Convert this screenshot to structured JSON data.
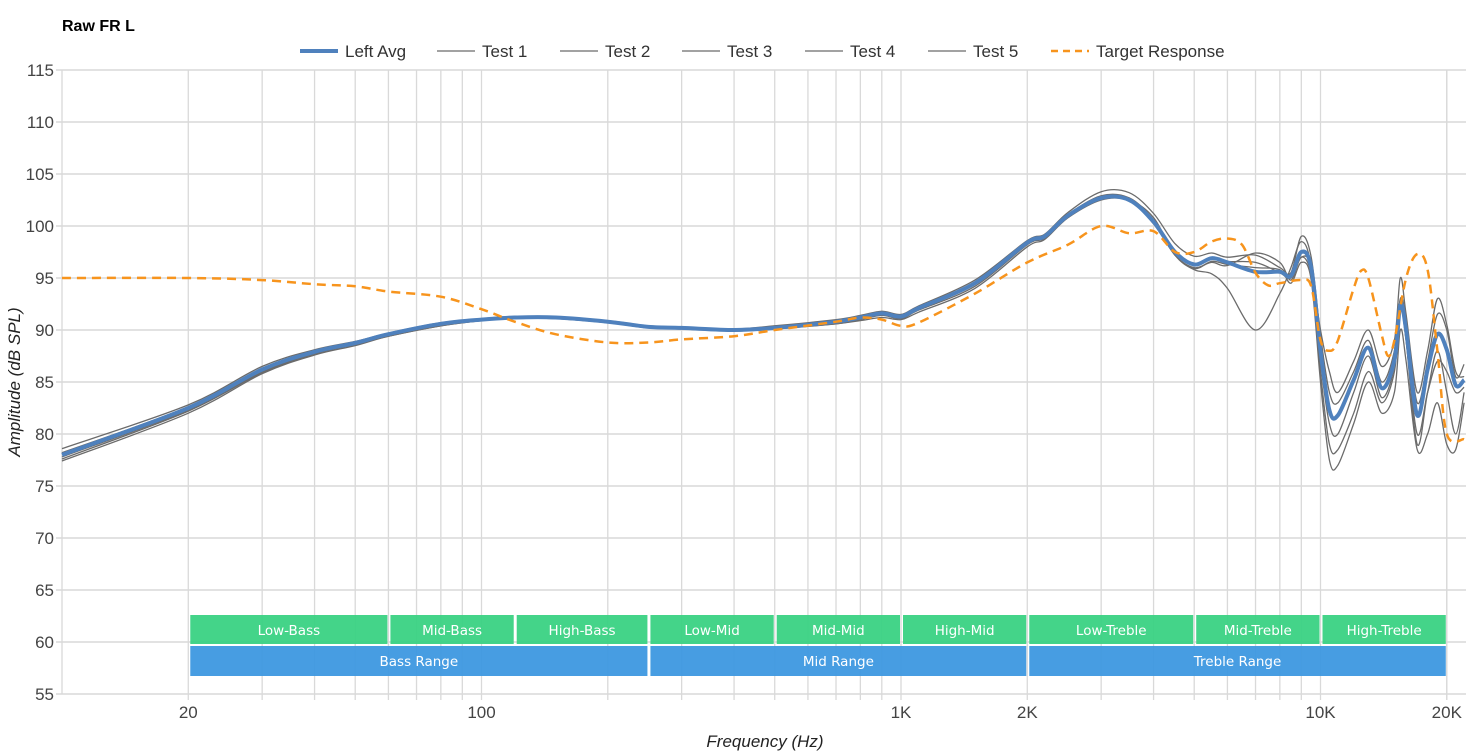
{
  "chart_data": {
    "type": "line",
    "title": "Raw FR L",
    "xlabel": "Frequency (Hz)",
    "ylabel": "Amplitude (dB SPL)",
    "xscale": "log",
    "xlim": [
      10,
      22000
    ],
    "ylim": [
      55,
      115
    ],
    "grid": true,
    "legend_position": "top",
    "yticks": [
      "55",
      "60",
      "65",
      "70",
      "75",
      "80",
      "85",
      "90",
      "95",
      "100",
      "105",
      "110",
      "115"
    ],
    "xticks": [
      {
        "value": 20,
        "label": "20"
      },
      {
        "value": 100,
        "label": "100"
      },
      {
        "value": 1000,
        "label": "1K"
      },
      {
        "value": 2000,
        "label": "2K"
      },
      {
        "value": 10000,
        "label": "10K"
      },
      {
        "value": 20000,
        "label": "20K"
      }
    ],
    "x": [
      10,
      20,
      30,
      40,
      50,
      60,
      80,
      100,
      120,
      150,
      200,
      250,
      300,
      400,
      500,
      700,
      800,
      900,
      1000,
      1100,
      1500,
      2000,
      2200,
      2500,
      3000,
      3500,
      4000,
      4500,
      5000,
      5500,
      6000,
      7000,
      8000,
      8500,
      9000,
      9500,
      10000,
      10500,
      11000,
      12000,
      13000,
      14000,
      15000,
      15500,
      16000,
      17000,
      18000,
      19000,
      20000,
      21000,
      22000
    ],
    "series": [
      {
        "name": "Test 1",
        "color": "#6b6b6b",
        "values": [
          77.4,
          82.0,
          85.8,
          87.6,
          88.5,
          89.4,
          90.4,
          90.9,
          91.1,
          91.1,
          90.7,
          90.2,
          90.1,
          89.9,
          90.1,
          90.6,
          90.9,
          91.2,
          91.0,
          91.7,
          94.0,
          98.0,
          98.7,
          100.8,
          102.6,
          102.5,
          100.8,
          97.2,
          95.8,
          95.4,
          94.0,
          90.0,
          93.5,
          96.0,
          98.5,
          96.0,
          86.0,
          79.0,
          78.5,
          82.0,
          86.0,
          83.0,
          86.0,
          92.0,
          89.0,
          80.0,
          84.0,
          87.0,
          86.0,
          84.0,
          84.5
        ]
      },
      {
        "name": "Test 2",
        "color": "#6b6b6b",
        "values": [
          78.6,
          82.8,
          86.5,
          88.1,
          88.9,
          89.7,
          90.7,
          91.1,
          91.3,
          91.3,
          90.9,
          90.4,
          90.3,
          90.1,
          90.4,
          91.0,
          91.4,
          91.8,
          91.5,
          92.3,
          94.8,
          98.6,
          99.2,
          101.3,
          103.3,
          103.2,
          101.2,
          98.3,
          97.1,
          97.4,
          97.0,
          97.2,
          96.0,
          95.5,
          99.0,
          97.0,
          89.5,
          84.0,
          83.0,
          86.0,
          89.0,
          85.0,
          88.0,
          93.0,
          91.0,
          83.0,
          87.0,
          91.5,
          90.0,
          85.5,
          86.7
        ]
      },
      {
        "name": "Test 3",
        "color": "#6b6b6b",
        "values": [
          77.8,
          82.3,
          86.0,
          87.8,
          88.7,
          89.5,
          90.5,
          91.0,
          91.2,
          91.2,
          90.8,
          90.3,
          90.2,
          90.0,
          90.2,
          90.7,
          91.1,
          91.5,
          91.2,
          92.0,
          94.4,
          98.3,
          98.9,
          100.9,
          102.8,
          102.6,
          100.4,
          97.2,
          96.0,
          96.5,
          96.2,
          97.4,
          96.5,
          94.8,
          97.0,
          95.5,
          90.0,
          86.0,
          84.0,
          87.0,
          90.0,
          86.5,
          89.0,
          95.0,
          91.5,
          84.0,
          88.0,
          93.0,
          90.5,
          86.0,
          85.5
        ]
      },
      {
        "name": "Test 4",
        "color": "#6b6b6b",
        "values": [
          78.2,
          82.6,
          86.3,
          88.0,
          88.8,
          89.6,
          90.6,
          91.0,
          91.2,
          91.2,
          90.8,
          90.3,
          90.2,
          90.0,
          90.2,
          90.8,
          91.2,
          91.7,
          91.4,
          92.2,
          94.6,
          98.5,
          99.1,
          101.1,
          102.9,
          102.7,
          100.6,
          97.6,
          96.4,
          97.0,
          96.6,
          96.5,
          95.5,
          95.0,
          97.0,
          95.8,
          87.0,
          81.0,
          80.0,
          84.0,
          87.5,
          83.5,
          86.5,
          92.5,
          89.0,
          79.0,
          84.0,
          88.0,
          84.0,
          80.0,
          84.0
        ]
      },
      {
        "name": "Test 5",
        "color": "#6b6b6b",
        "values": [
          77.6,
          82.2,
          85.9,
          87.7,
          88.6,
          89.4,
          90.4,
          90.9,
          91.1,
          91.1,
          90.7,
          90.2,
          90.1,
          89.9,
          90.1,
          90.6,
          91.0,
          91.4,
          91.1,
          91.9,
          94.2,
          98.2,
          98.8,
          100.8,
          102.5,
          102.4,
          100.2,
          97.2,
          95.9,
          96.6,
          96.3,
          96.0,
          95.8,
          94.5,
          96.5,
          94.8,
          85.0,
          77.5,
          77.0,
          81.0,
          85.0,
          82.0,
          84.0,
          90.0,
          87.0,
          78.5,
          80.0,
          83.0,
          79.0,
          78.5,
          83.0
        ]
      },
      {
        "name": "Left Avg",
        "color": "#4f81bd",
        "values": [
          78.0,
          82.5,
          86.2,
          87.9,
          88.75,
          89.6,
          90.6,
          91.0,
          91.2,
          91.2,
          90.8,
          90.3,
          90.2,
          90.0,
          90.2,
          90.8,
          91.2,
          91.6,
          91.3,
          92.1,
          94.5,
          98.4,
          99.0,
          101.0,
          102.7,
          102.5,
          100.4,
          97.5,
          96.3,
          96.9,
          96.5,
          95.6,
          95.6,
          95.2,
          97.5,
          96.0,
          88.0,
          82.3,
          81.8,
          85.2,
          88.3,
          84.4,
          87.1,
          92.4,
          90.0,
          81.8,
          86.2,
          89.6,
          88.1,
          84.7,
          85.2
        ]
      }
    ],
    "target": {
      "name": "Target Response",
      "color": "#f7941d",
      "x": [
        10,
        20,
        30,
        40,
        50,
        60,
        80,
        100,
        120,
        150,
        200,
        250,
        300,
        400,
        500,
        700,
        800,
        900,
        1000,
        1100,
        1500,
        2000,
        2500,
        3000,
        3500,
        4000,
        4500,
        5000,
        5500,
        6000,
        6500,
        7000,
        7500,
        8000,
        9000,
        9500,
        10000,
        10500,
        11000,
        12000,
        12500,
        13000,
        14000,
        14500,
        15000,
        16000,
        17000,
        18000,
        19000,
        20000,
        22000
      ],
      "values": [
        95,
        95,
        94.8,
        94.4,
        94.2,
        93.7,
        93.2,
        92,
        90.8,
        89.6,
        88.8,
        88.8,
        89.1,
        89.4,
        90.0,
        90.8,
        91.2,
        91.0,
        90.4,
        90.7,
        93.5,
        96.5,
        98.2,
        100.0,
        99.3,
        99.5,
        97.5,
        97.5,
        98.5,
        98.8,
        98.2,
        95.5,
        94.3,
        94.5,
        94.8,
        94.2,
        89,
        88,
        89,
        94,
        95.7,
        95,
        89.5,
        87.5,
        89,
        95,
        97.3,
        95.8,
        88,
        80,
        79.5
      ]
    },
    "legend": [
      "Left Avg",
      "Test 1",
      "Test 2",
      "Test 3",
      "Test 4",
      "Test 5",
      "Target Response"
    ],
    "bands": [
      {
        "label": "Low-Bass",
        "from": 20,
        "to": 60
      },
      {
        "label": "Mid-Bass",
        "from": 60,
        "to": 120
      },
      {
        "label": "High-Bass",
        "from": 120,
        "to": 250
      },
      {
        "label": "Low-Mid",
        "from": 250,
        "to": 500
      },
      {
        "label": "Mid-Mid",
        "from": 500,
        "to": 1000
      },
      {
        "label": "High-Mid",
        "from": 1000,
        "to": 2000
      },
      {
        "label": "Low-Treble",
        "from": 2000,
        "to": 5000
      },
      {
        "label": "Mid-Treble",
        "from": 5000,
        "to": 10000
      },
      {
        "label": "High-Treble",
        "from": 10000,
        "to": 20000
      }
    ],
    "ranges": [
      {
        "label": "Bass Range",
        "from": 20,
        "to": 250
      },
      {
        "label": "Mid Range",
        "from": 250,
        "to": 2000
      },
      {
        "label": "Treble Range",
        "from": 2000,
        "to": 20000
      }
    ],
    "band_color": "#3ad283",
    "range_color": "#3d98e0"
  }
}
